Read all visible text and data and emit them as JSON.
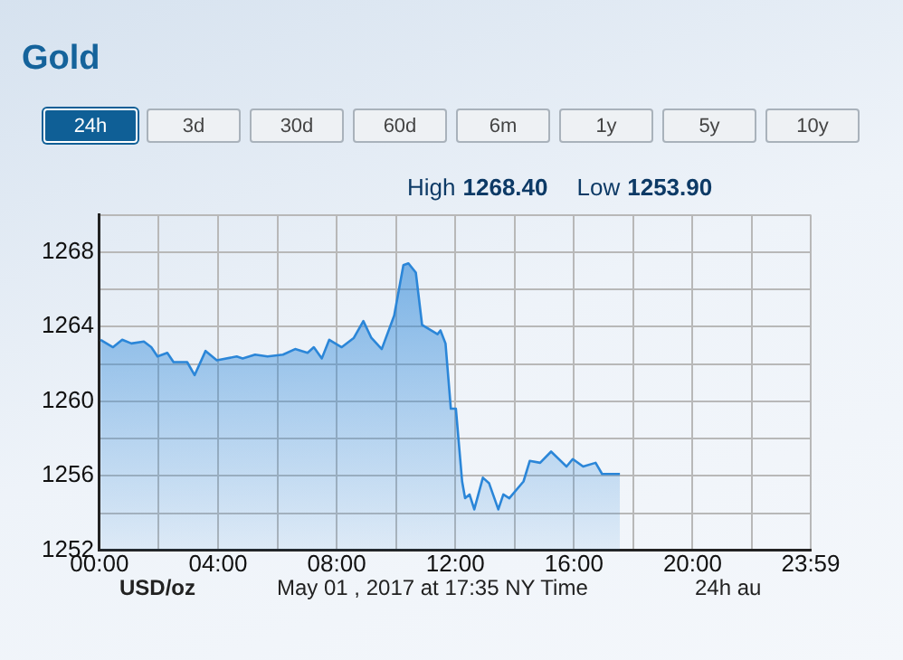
{
  "chart_data": {
    "type": "area",
    "title": "Gold",
    "xlabel": "May 01 , 2017 at 17:35 NY Time",
    "annotations": [
      "24h",
      "3d",
      "30d",
      "60d",
      "6m",
      "1y",
      "5y",
      "10y",
      "High 1268.40",
      "Low 1253.90",
      "24h au",
      "USD/oz"
    ],
    "x": [
      0.04,
      0.46,
      0.77,
      1.08,
      1.5,
      1.75,
      1.96,
      2.29,
      2.5,
      2.96,
      3.21,
      3.58,
      3.96,
      4.63,
      4.83,
      5.25,
      5.67,
      6.19,
      6.6,
      7.02,
      7.23,
      7.5,
      7.75,
      8.17,
      8.58,
      8.9,
      9.17,
      9.52,
      9.94,
      10.25,
      10.42,
      10.67,
      10.88,
      11.4,
      11.5,
      11.67,
      11.85,
      12.02,
      12.23,
      12.33,
      12.48,
      12.64,
      12.93,
      13.14,
      13.45,
      13.62,
      13.82,
      14.3,
      14.51,
      14.86,
      15.23,
      15.75,
      15.96,
      16.31,
      16.73,
      16.95,
      17.55
    ],
    "series": [
      {
        "color": "#2b86d8",
        "values": [
          1263.3,
          1262.9,
          1263.3,
          1263.1,
          1263.2,
          1262.9,
          1262.4,
          1262.6,
          1262.1,
          1262.1,
          1261.4,
          1262.7,
          1262.2,
          1262.4,
          1262.3,
          1262.5,
          1262.4,
          1262.5,
          1262.8,
          1262.6,
          1262.9,
          1262.3,
          1263.3,
          1262.9,
          1263.4,
          1264.3,
          1263.4,
          1262.8,
          1264.6,
          1267.3,
          1267.4,
          1266.9,
          1264.1,
          1263.6,
          1263.8,
          1263.1,
          1259.6,
          1259.6,
          1255.7,
          1254.8,
          1255.0,
          1254.2,
          1255.9,
          1255.6,
          1254.2,
          1255.0,
          1254.8,
          1255.7,
          1256.8,
          1256.7,
          1257.3,
          1256.5,
          1256.9,
          1256.5,
          1256.7,
          1256.1,
          1256.1
        ]
      }
    ],
    "xlim": [
      0,
      23.983
    ],
    "xticks": [
      {
        "value": 0,
        "label": "00:00"
      },
      {
        "value": 2,
        "label": null
      },
      {
        "value": 4,
        "label": "04:00"
      },
      {
        "value": 6,
        "label": null
      },
      {
        "value": 8,
        "label": "08:00"
      },
      {
        "value": 10,
        "label": null
      },
      {
        "value": 12,
        "label": "12:00"
      },
      {
        "value": 14,
        "label": null
      },
      {
        "value": 16,
        "label": "16:00"
      },
      {
        "value": 18,
        "label": null
      },
      {
        "value": 20,
        "label": "20:00"
      },
      {
        "value": 22,
        "label": null
      },
      {
        "value": 23.983,
        "label": "23:59"
      }
    ],
    "ylim": [
      1252,
      1270
    ],
    "yticks": [
      1252,
      {
        "value": 1254,
        "label": null
      },
      1256,
      {
        "value": 1258,
        "label": null
      },
      1260,
      {
        "value": 1262,
        "label": null
      },
      1264,
      {
        "value": 1266,
        "label": null
      },
      1268,
      {
        "value": 1270,
        "label": null
      }
    ],
    "grid": true,
    "legend": false,
    "marker": "none",
    "line_style": "solid"
  }
}
